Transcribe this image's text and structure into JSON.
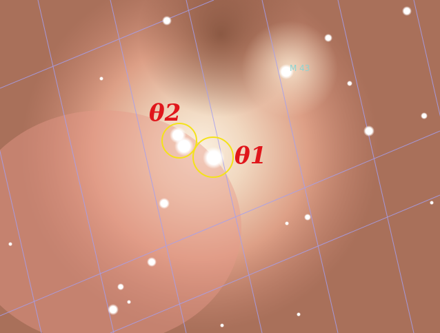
{
  "annotations": [
    {
      "text": "θ2"
    },
    {
      "text": "θ1"
    },
    {
      "text": "M 43"
    }
  ]
}
